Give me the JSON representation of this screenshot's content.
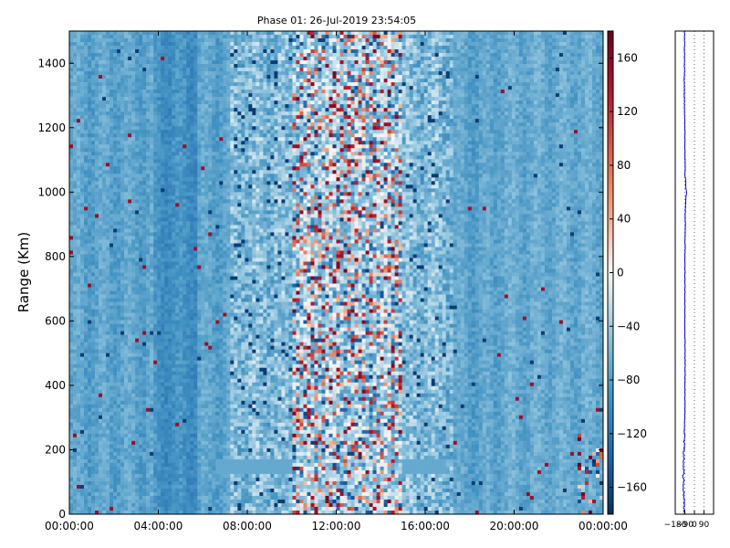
{
  "chart_data": [
    {
      "type": "heatmap",
      "title": "Phase 01: 26-Jul-2019 23:54:05",
      "xlabel": "",
      "ylabel": "Range (Km)",
      "xlim": [
        "00:00:00",
        "24:00:00"
      ],
      "ylim": [
        0,
        1500
      ],
      "x_ticks": [
        "00:00:00",
        "04:00:00",
        "08:00:00",
        "12:00:00",
        "16:00:00",
        "20:00:00",
        "00:00:00"
      ],
      "y_ticks": [
        0,
        200,
        400,
        600,
        800,
        1000,
        1200,
        1400
      ],
      "colormap": "RdBu_r",
      "colorbar": {
        "range": [
          -180,
          180
        ],
        "ticks": [
          "160",
          "120",
          "80",
          "40",
          "0",
          "−40",
          "−80",
          "−120",
          "−160"
        ]
      },
      "features": [
        {
          "desc": "noisy band of large phase variation",
          "x_start": "10:00:00",
          "x_end": "15:00:00",
          "values_range": [
            -180,
            180
          ]
        },
        {
          "desc": "horizontal stripe",
          "x_start": "06:30:00",
          "x_end": "17:00:00",
          "y": 150
        },
        {
          "desc": "background phase level",
          "value": -75
        }
      ]
    },
    {
      "type": "line",
      "title": "",
      "xlabel": "",
      "ylabel": "",
      "xlim": [
        -180,
        180
      ],
      "ylim": [
        0,
        1500
      ],
      "x_ticks": [
        "−180",
        "−90",
        "0",
        "90"
      ],
      "gridlines_x": [
        -90,
        0,
        90
      ],
      "series_profile": {
        "y": [
          0,
          150,
          200,
          300,
          450,
          600,
          800,
          950,
          1000,
          1050,
          1200,
          1300,
          1500
        ],
        "x": [
          -95,
          -105,
          -98,
          -90,
          -88,
          -90,
          -88,
          -85,
          -75,
          -87,
          -90,
          -95,
          -92
        ]
      }
    }
  ]
}
